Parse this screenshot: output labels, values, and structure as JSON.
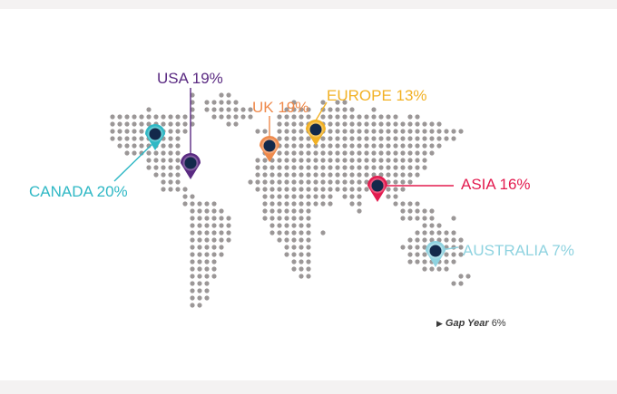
{
  "colors": {
    "background": "#f4f2f2",
    "card": "#ffffff",
    "dots": "#9b9797",
    "pin_center": "#13294b"
  },
  "regions": [
    {
      "id": "usa",
      "label": "USA 19%",
      "color": "#5a2a82",
      "icon": "map-pin-icon"
    },
    {
      "id": "canada",
      "label": "CANADA 20%",
      "color": "#2fb8c5",
      "icon": "map-pin-icon"
    },
    {
      "id": "uk",
      "label": "UK 19%",
      "color": "#ef8a4c",
      "icon": "map-pin-icon"
    },
    {
      "id": "europe",
      "label": "EUROPE 13%",
      "color": "#f2b124",
      "icon": "map-pin-icon"
    },
    {
      "id": "asia",
      "label": "ASIA 16%",
      "color": "#e31b4f",
      "icon": "map-pin-icon"
    },
    {
      "id": "australia",
      "label": "AUSTRALIA 7%",
      "color": "#8fd3e0",
      "icon": "map-pin-icon"
    }
  ],
  "footnote": {
    "icon": "triangle-right-icon",
    "name": "Gap Year",
    "value": "6%"
  }
}
